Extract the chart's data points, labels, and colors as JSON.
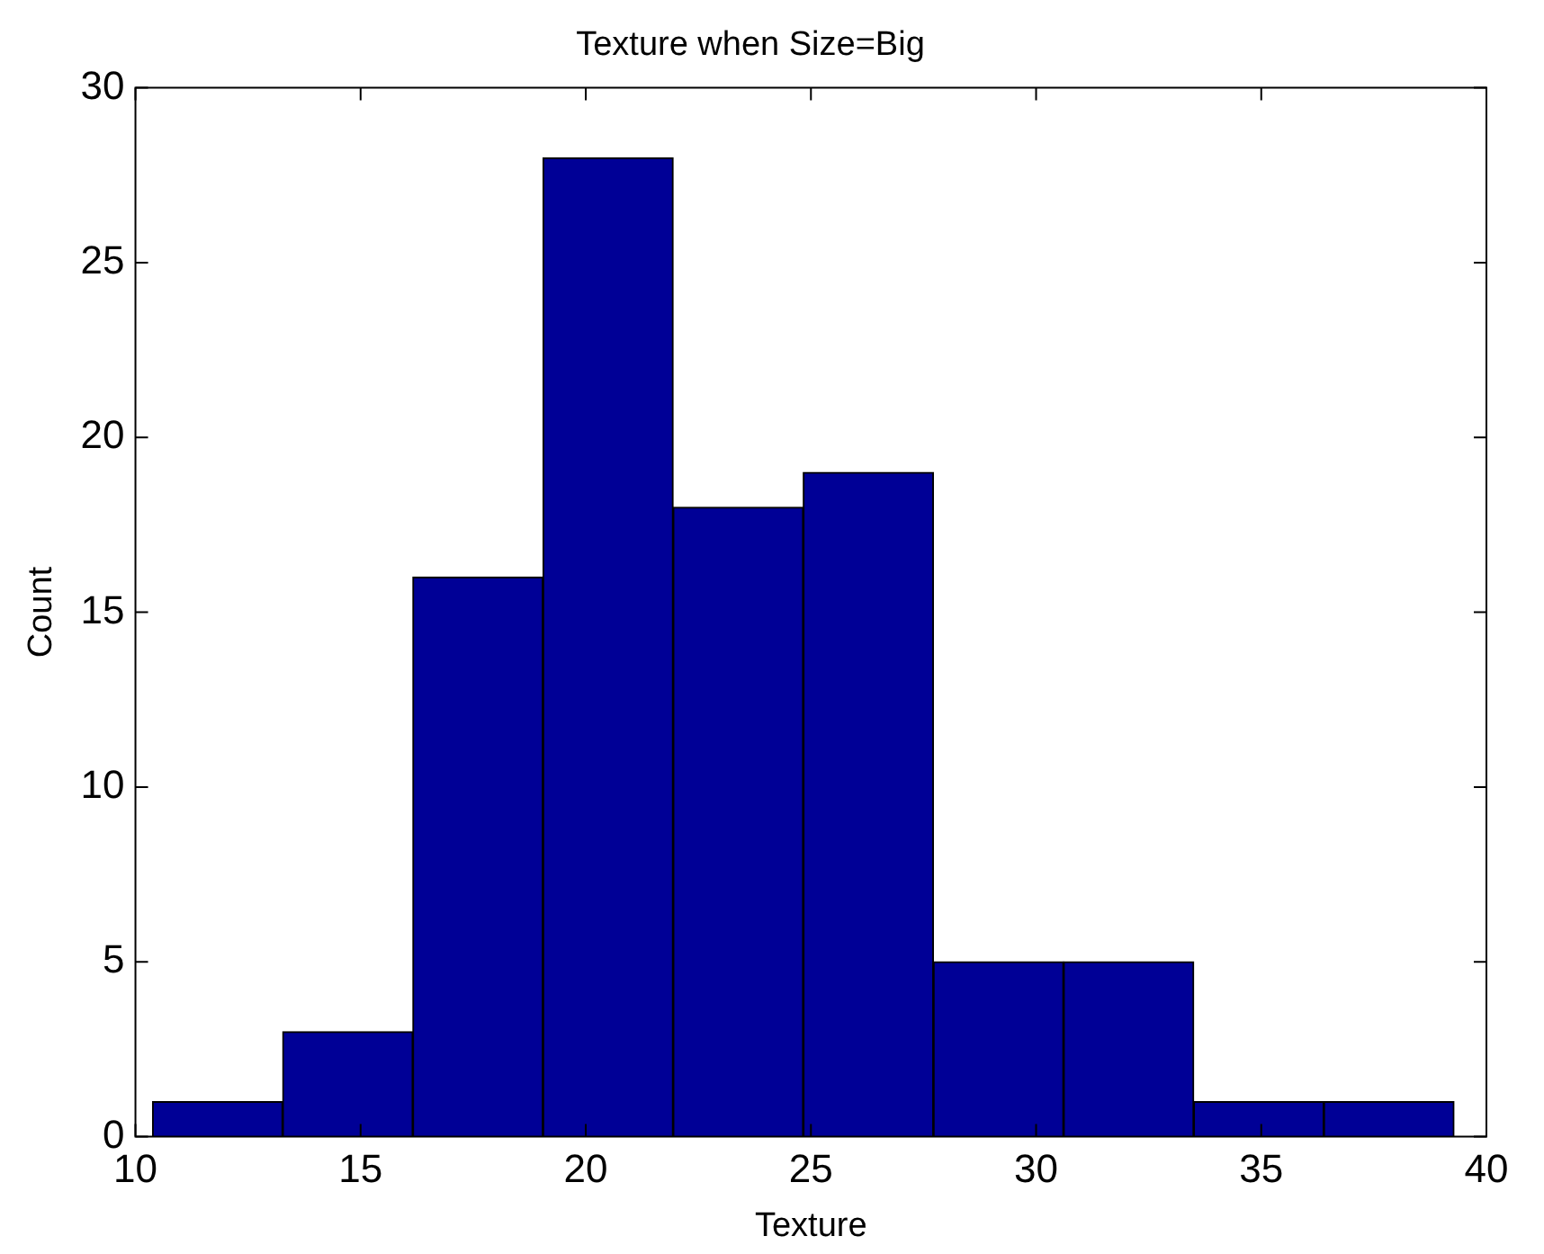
{
  "chart_data": {
    "type": "histogram",
    "title": "Texture when Size=Big",
    "xlabel": "Texture",
    "ylabel": "Count",
    "bins": [
      10.38,
      13.27,
      16.16,
      19.05,
      21.94,
      24.83,
      27.72,
      30.61,
      33.5,
      36.39,
      39.28
    ],
    "values": [
      1,
      3,
      16,
      28,
      18,
      19,
      5,
      5,
      1,
      1
    ],
    "color": "#000096",
    "xlim": [
      10,
      40
    ],
    "xticks": [
      10,
      15,
      20,
      25,
      30,
      35,
      40
    ],
    "ylim": [
      0,
      30
    ],
    "yticks": [
      0,
      5,
      10,
      15,
      20,
      25,
      30
    ],
    "grid": false,
    "legend": false
  }
}
